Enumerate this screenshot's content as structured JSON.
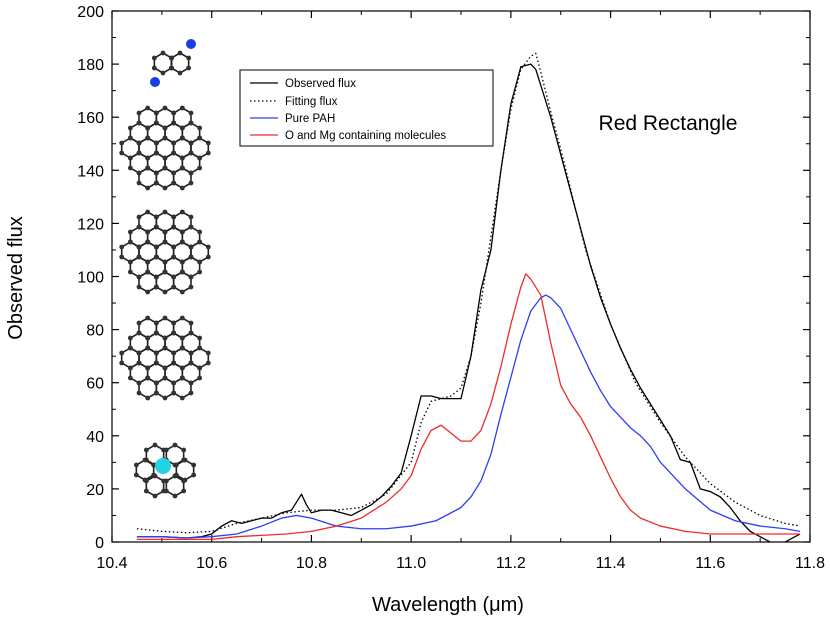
{
  "chart_data": {
    "type": "line",
    "title": "Red Rectangle",
    "xlabel": "Wavelength (μm)",
    "ylabel": "Observed flux",
    "xlim": [
      10.4,
      11.8
    ],
    "ylim": [
      0,
      200
    ],
    "xticks": [
      10.4,
      10.6,
      10.8,
      11.0,
      11.2,
      11.4,
      11.6,
      11.8
    ],
    "xtick_labels": [
      "10.4",
      "10.6",
      "10.8",
      "11.0",
      "11.2",
      "11.4",
      "11.6",
      "11.8"
    ],
    "yticks": [
      0,
      20,
      40,
      60,
      80,
      100,
      120,
      140,
      160,
      180,
      200
    ],
    "ytick_labels": [
      "0",
      "20",
      "40",
      "60",
      "80",
      "100",
      "120",
      "140",
      "160",
      "180",
      "200"
    ],
    "legend_position": "top-left",
    "series": [
      {
        "name": "Observed flux",
        "color": "#000000",
        "style": "solid",
        "x": [
          10.45,
          10.5,
          10.55,
          10.58,
          10.6,
          10.62,
          10.64,
          10.66,
          10.68,
          10.7,
          10.72,
          10.74,
          10.76,
          10.77,
          10.78,
          10.79,
          10.8,
          10.82,
          10.84,
          10.86,
          10.88,
          10.9,
          10.92,
          10.94,
          10.96,
          10.98,
          11.0,
          11.02,
          11.04,
          11.06,
          11.08,
          11.1,
          11.12,
          11.14,
          11.16,
          11.18,
          11.2,
          11.22,
          11.24,
          11.25,
          11.26,
          11.28,
          11.3,
          11.32,
          11.34,
          11.36,
          11.38,
          11.4,
          11.42,
          11.44,
          11.46,
          11.48,
          11.5,
          11.52,
          11.54,
          11.56,
          11.58,
          11.6,
          11.62,
          11.64,
          11.66,
          11.68,
          11.7,
          11.72,
          11.74,
          11.76,
          11.78
        ],
        "y": [
          2,
          2,
          1.5,
          2,
          3,
          6,
          8,
          7,
          8,
          9,
          9,
          11,
          12,
          15,
          18,
          14,
          11,
          12,
          12,
          11,
          10,
          12,
          14,
          17,
          21,
          26,
          40,
          55,
          55,
          54,
          54,
          54,
          70,
          95,
          110,
          140,
          165,
          179,
          180,
          178,
          172,
          160,
          146,
          132,
          118,
          104,
          92,
          82,
          73,
          65,
          58,
          52,
          46,
          40,
          31,
          30,
          20,
          19,
          17,
          13,
          8,
          4,
          2,
          0,
          -1,
          1,
          3
        ]
      },
      {
        "name": "Fitting flux",
        "color": "#000000",
        "style": "dotted",
        "x": [
          10.45,
          10.5,
          10.55,
          10.6,
          10.65,
          10.7,
          10.75,
          10.8,
          10.85,
          10.9,
          10.95,
          11.0,
          11.02,
          11.04,
          11.06,
          11.08,
          11.1,
          11.12,
          11.14,
          11.16,
          11.18,
          11.2,
          11.22,
          11.24,
          11.25,
          11.26,
          11.28,
          11.3,
          11.35,
          11.4,
          11.45,
          11.5,
          11.55,
          11.6,
          11.65,
          11.7,
          11.75,
          11.78
        ],
        "y": [
          5,
          4,
          3.5,
          4,
          7,
          9,
          11,
          12,
          12,
          13,
          18,
          30,
          45,
          53,
          54,
          55,
          58,
          70,
          90,
          115,
          140,
          163,
          178,
          183,
          184,
          177,
          162,
          148,
          110,
          82,
          60,
          45,
          32,
          22,
          15,
          10,
          7,
          6
        ]
      },
      {
        "name": "Pure PAH",
        "color": "#2b3ff0",
        "style": "solid",
        "x": [
          10.45,
          10.5,
          10.55,
          10.6,
          10.65,
          10.7,
          10.74,
          10.77,
          10.8,
          10.85,
          10.9,
          10.95,
          11.0,
          11.05,
          11.1,
          11.12,
          11.14,
          11.16,
          11.18,
          11.2,
          11.22,
          11.24,
          11.26,
          11.27,
          11.28,
          11.3,
          11.32,
          11.34,
          11.36,
          11.38,
          11.4,
          11.42,
          11.44,
          11.46,
          11.48,
          11.5,
          11.55,
          11.6,
          11.65,
          11.7,
          11.75,
          11.78
        ],
        "y": [
          2,
          2,
          1.5,
          2,
          3,
          6,
          9,
          10,
          9,
          6,
          5,
          5,
          6,
          8,
          13,
          17,
          23,
          33,
          48,
          62,
          76,
          87,
          92,
          93,
          92,
          88,
          80,
          72,
          64,
          57,
          51,
          47,
          43,
          40,
          36,
          30,
          20,
          12,
          8,
          6,
          5,
          4
        ]
      },
      {
        "name": "O and Mg containing molecules",
        "color": "#f02a2a",
        "style": "solid",
        "x": [
          10.45,
          10.5,
          10.55,
          10.6,
          10.65,
          10.7,
          10.75,
          10.8,
          10.85,
          10.9,
          10.95,
          10.98,
          11.0,
          11.02,
          11.04,
          11.06,
          11.08,
          11.1,
          11.12,
          11.14,
          11.16,
          11.18,
          11.2,
          11.22,
          11.23,
          11.24,
          11.26,
          11.28,
          11.3,
          11.32,
          11.34,
          11.36,
          11.38,
          11.4,
          11.42,
          11.44,
          11.46,
          11.5,
          11.55,
          11.6,
          11.65,
          11.7,
          11.75,
          11.78
        ],
        "y": [
          1,
          1,
          1,
          1,
          2,
          2.5,
          3,
          4,
          6,
          9,
          15,
          20,
          25,
          35,
          42,
          44,
          41,
          38,
          38,
          42,
          52,
          66,
          82,
          96,
          101,
          99,
          93,
          75,
          59,
          52,
          47,
          40,
          32,
          24,
          17,
          12,
          9,
          6,
          4,
          3,
          3,
          3,
          3,
          3
        ]
      }
    ]
  }
}
